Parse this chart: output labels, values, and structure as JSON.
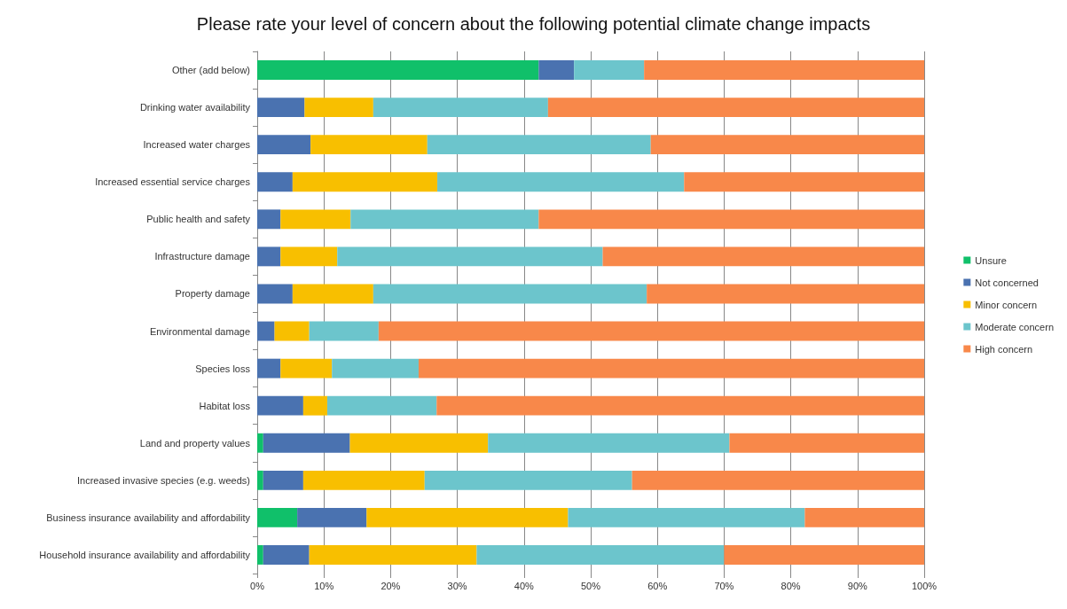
{
  "chart_data": {
    "type": "bar",
    "orientation": "horizontal",
    "stacked": true,
    "title": "Please rate your level of concern about the following potential climate change impacts",
    "categories": [
      "Other (add below)",
      "Drinking water availability",
      "Increased water charges",
      "Increased essential service charges",
      "Public health and safety",
      "Infrastructure damage",
      "Property damage",
      "Environmental damage",
      "Species loss",
      "Habitat loss",
      "Land and property values",
      "Increased invasive species (e.g. weeds)",
      "Business insurance availability and affordability",
      "Household insurance availability and affordability"
    ],
    "series": [
      {
        "name": "Unsure",
        "color": "#10c06a",
        "values": [
          42.2,
          0,
          0,
          0,
          0,
          0,
          0,
          0,
          0,
          0,
          0.9,
          0.9,
          6,
          0.9
        ]
      },
      {
        "name": "Not concerned",
        "color": "#4a72b0",
        "values": [
          5.3,
          7.1,
          8,
          5.3,
          3.5,
          3.5,
          5.3,
          2.6,
          3.5,
          6.9,
          13,
          6,
          10.4,
          6.9
        ]
      },
      {
        "name": "Minor concern",
        "color": "#f8bf00",
        "values": [
          0,
          10.3,
          17.5,
          21.7,
          10.5,
          8.5,
          12.1,
          5.2,
          7.7,
          3.6,
          20.7,
          18.2,
          30.2,
          25.1
        ]
      },
      {
        "name": "Moderate concern",
        "color": "#6cc5cc",
        "values": [
          10.5,
          26.2,
          33.5,
          37,
          28.2,
          39.8,
          41,
          10.4,
          13,
          16.4,
          36.2,
          31.1,
          35.5,
          37.1
        ]
      },
      {
        "name": "High concern",
        "color": "#f8884a",
        "values": [
          42,
          56.4,
          41,
          36,
          57.8,
          48.2,
          41.6,
          81.8,
          75.8,
          73.1,
          29.2,
          43.8,
          17.9,
          30
        ]
      }
    ],
    "xlim": [
      0,
      100
    ],
    "xticks": [
      {
        "value": 0,
        "label": "0%"
      },
      {
        "value": 10,
        "label": "10%"
      },
      {
        "value": 20,
        "label": "20%"
      },
      {
        "value": 30,
        "label": "30%"
      },
      {
        "value": 40,
        "label": "40%"
      },
      {
        "value": 50,
        "label": "50%"
      },
      {
        "value": 60,
        "label": "60%"
      },
      {
        "value": 70,
        "label": "70%"
      },
      {
        "value": 80,
        "label": "80%"
      },
      {
        "value": 90,
        "label": "90%"
      },
      {
        "value": 100,
        "label": "100%"
      }
    ],
    "grid": "x",
    "legend": "right"
  }
}
